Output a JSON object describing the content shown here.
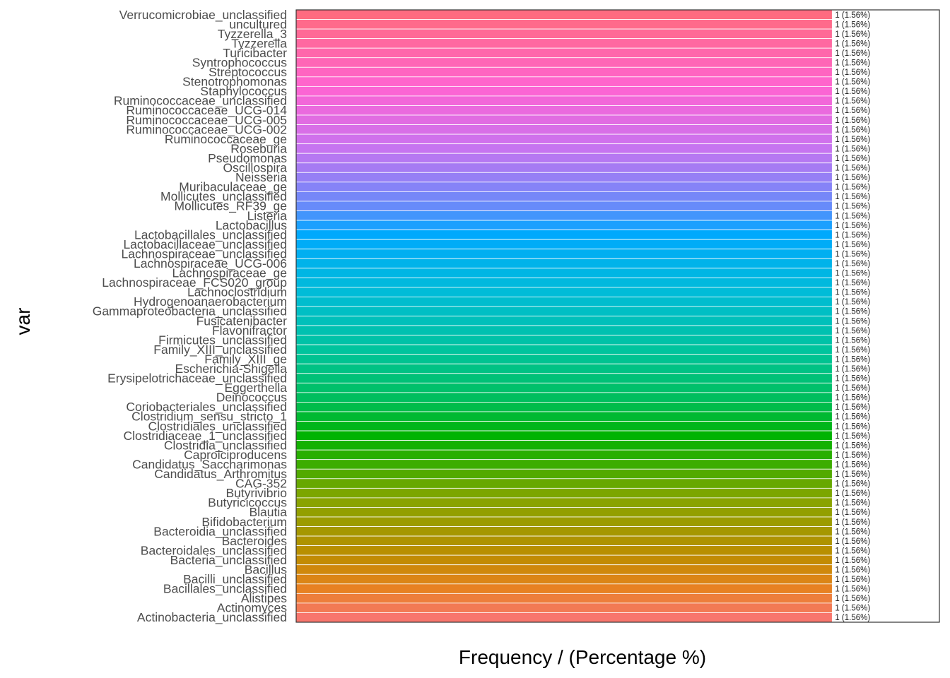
{
  "chart_data": {
    "type": "bar",
    "orientation": "horizontal",
    "xlabel": "Frequency / (Percentage %)",
    "ylabel": "var",
    "categories": [
      "Verrucomicrobiae_unclassified",
      "uncultured",
      "Tyzzerella_3",
      "Tyzzerella",
      "Turicibacter",
      "Syntrophococcus",
      "Streptococcus",
      "Stenotrophomonas",
      "Staphylococcus",
      "Ruminococcaceae_unclassified",
      "Ruminococcaceae_UCG-014",
      "Ruminococcaceae_UCG-005",
      "Ruminococcaceae_UCG-002",
      "Ruminococcaceae_ge",
      "Roseburia",
      "Pseudomonas",
      "Oscillospira",
      "Neisseria",
      "Muribaculaceae_ge",
      "Mollicutes_unclassified",
      "Mollicutes_RF39_ge",
      "Listeria",
      "Lactobacillus",
      "Lactobacillales_unclassified",
      "Lactobacillaceae_unclassified",
      "Lachnospiraceae_unclassified",
      "Lachnospiraceae_UCG-006",
      "Lachnospiraceae_ge",
      "Lachnospiraceae_FCS020_group",
      "Lachnoclostridium",
      "Hydrogenoanaerobacterium",
      "Gammaproteobacteria_unclassified",
      "Fusicatenibacter",
      "Flavonifractor",
      "Firmicutes_unclassified",
      "Family_XIII_unclassified",
      "Family_XIII_ge",
      "Escherichia-Shigella",
      "Erysipelotrichaceae_unclassified",
      "Eggerthella",
      "Deinococcus",
      "Coriobacteriales_unclassified",
      "Clostridium_sensu_stricto_1",
      "Clostridiales_unclassified",
      "Clostridiaceae_1_unclassified",
      "Clostridia_unclassified",
      "Caproiciproducens",
      "Candidatus_Saccharimonas",
      "Candidatus_Arthromitus",
      "CAG-352",
      "Butyrivibrio",
      "Butyricicoccus",
      "Blautia",
      "Bifidobacterium",
      "Bacteroidia_unclassified",
      "Bacteroides",
      "Bacteroidales_unclassified",
      "Bacteria_unclassified",
      "Bacillus",
      "Bacilli_unclassified",
      "Bacillales_unclassified",
      "Alistipes",
      "Actinomyces",
      "Actinobacteria_unclassified"
    ],
    "values": [
      1,
      1,
      1,
      1,
      1,
      1,
      1,
      1,
      1,
      1,
      1,
      1,
      1,
      1,
      1,
      1,
      1,
      1,
      1,
      1,
      1,
      1,
      1,
      1,
      1,
      1,
      1,
      1,
      1,
      1,
      1,
      1,
      1,
      1,
      1,
      1,
      1,
      1,
      1,
      1,
      1,
      1,
      1,
      1,
      1,
      1,
      1,
      1,
      1,
      1,
      1,
      1,
      1,
      1,
      1,
      1,
      1,
      1,
      1,
      1,
      1,
      1,
      1,
      1
    ],
    "value_labels": [
      "1 (1.56%)",
      "1 (1.56%)",
      "1 (1.56%)",
      "1 (1.56%)",
      "1 (1.56%)",
      "1 (1.56%)",
      "1 (1.56%)",
      "1 (1.56%)",
      "1 (1.56%)",
      "1 (1.56%)",
      "1 (1.56%)",
      "1 (1.56%)",
      "1 (1.56%)",
      "1 (1.56%)",
      "1 (1.56%)",
      "1 (1.56%)",
      "1 (1.56%)",
      "1 (1.56%)",
      "1 (1.56%)",
      "1 (1.56%)",
      "1 (1.56%)",
      "1 (1.56%)",
      "1 (1.56%)",
      "1 (1.56%)",
      "1 (1.56%)",
      "1 (1.56%)",
      "1 (1.56%)",
      "1 (1.56%)",
      "1 (1.56%)",
      "1 (1.56%)",
      "1 (1.56%)",
      "1 (1.56%)",
      "1 (1.56%)",
      "1 (1.56%)",
      "1 (1.56%)",
      "1 (1.56%)",
      "1 (1.56%)",
      "1 (1.56%)",
      "1 (1.56%)",
      "1 (1.56%)",
      "1 (1.56%)",
      "1 (1.56%)",
      "1 (1.56%)",
      "1 (1.56%)",
      "1 (1.56%)",
      "1 (1.56%)",
      "1 (1.56%)",
      "1 (1.56%)",
      "1 (1.56%)",
      "1 (1.56%)",
      "1 (1.56%)",
      "1 (1.56%)",
      "1 (1.56%)",
      "1 (1.56%)",
      "1 (1.56%)",
      "1 (1.56%)",
      "1 (1.56%)",
      "1 (1.56%)",
      "1 (1.56%)",
      "1 (1.56%)",
      "1 (1.56%)",
      "1 (1.56%)",
      "1 (1.56%)",
      "1 (1.56%)"
    ],
    "xlim": [
      0,
      1.2
    ],
    "grid": false,
    "legend": "none",
    "colors": {
      "palette": "hue gradient from #ff6b80 (top) through #00a8ff and #00b300 to #f8766d (bottom)",
      "panel_border": "#333333",
      "bar_separator": "#ffffff"
    }
  }
}
